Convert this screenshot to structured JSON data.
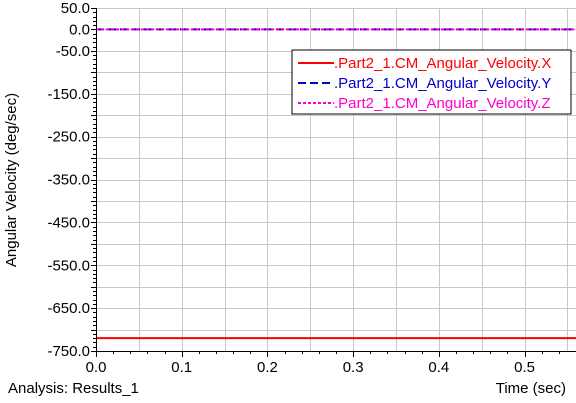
{
  "chart_data": {
    "type": "line",
    "xlabel": "Time (sec)",
    "ylabel": "Angular Velocity (deg/sec)",
    "footer": "Analysis:  Results_1",
    "xlim": [
      0.0,
      0.56
    ],
    "ylim": [
      -750.0,
      50.0
    ],
    "x_ticks": [
      0.0,
      0.1,
      0.2,
      0.3,
      0.4,
      0.5
    ],
    "x_tick_labels": [
      "0.0",
      "0.1",
      "0.2",
      "0.3",
      "0.4",
      "0.5"
    ],
    "y_ticks": [
      50.0,
      0.0,
      -50.0,
      -150.0,
      -250.0,
      -350.0,
      -450.0,
      -550.0,
      -650.0,
      -750.0
    ],
    "y_tick_labels": [
      "50.0",
      "0.0",
      "-50.0",
      "-150.0",
      "-250.0",
      "-350.0",
      "-450.0",
      "-550.0",
      "-650.0",
      "-750.0"
    ],
    "grid": true,
    "legend_position": "top-right",
    "series": [
      {
        "name": ".Part2_1.CM_Angular_Velocity.X",
        "color": "#ff0000",
        "style": "solid",
        "x": [
          0.0,
          0.56
        ],
        "y": [
          -720.0,
          -720.0
        ]
      },
      {
        "name": ".Part2_1.CM_Angular_Velocity.Y",
        "color": "#0000cc",
        "style": "dashed",
        "x": [
          0.0,
          0.56
        ],
        "y": [
          0.0,
          0.0
        ]
      },
      {
        "name": ".Part2_1.CM_Angular_Velocity.Z",
        "color": "#ff00cc",
        "style": "dotted",
        "x": [
          0.0,
          0.56
        ],
        "y": [
          0.0,
          0.0
        ]
      }
    ]
  }
}
